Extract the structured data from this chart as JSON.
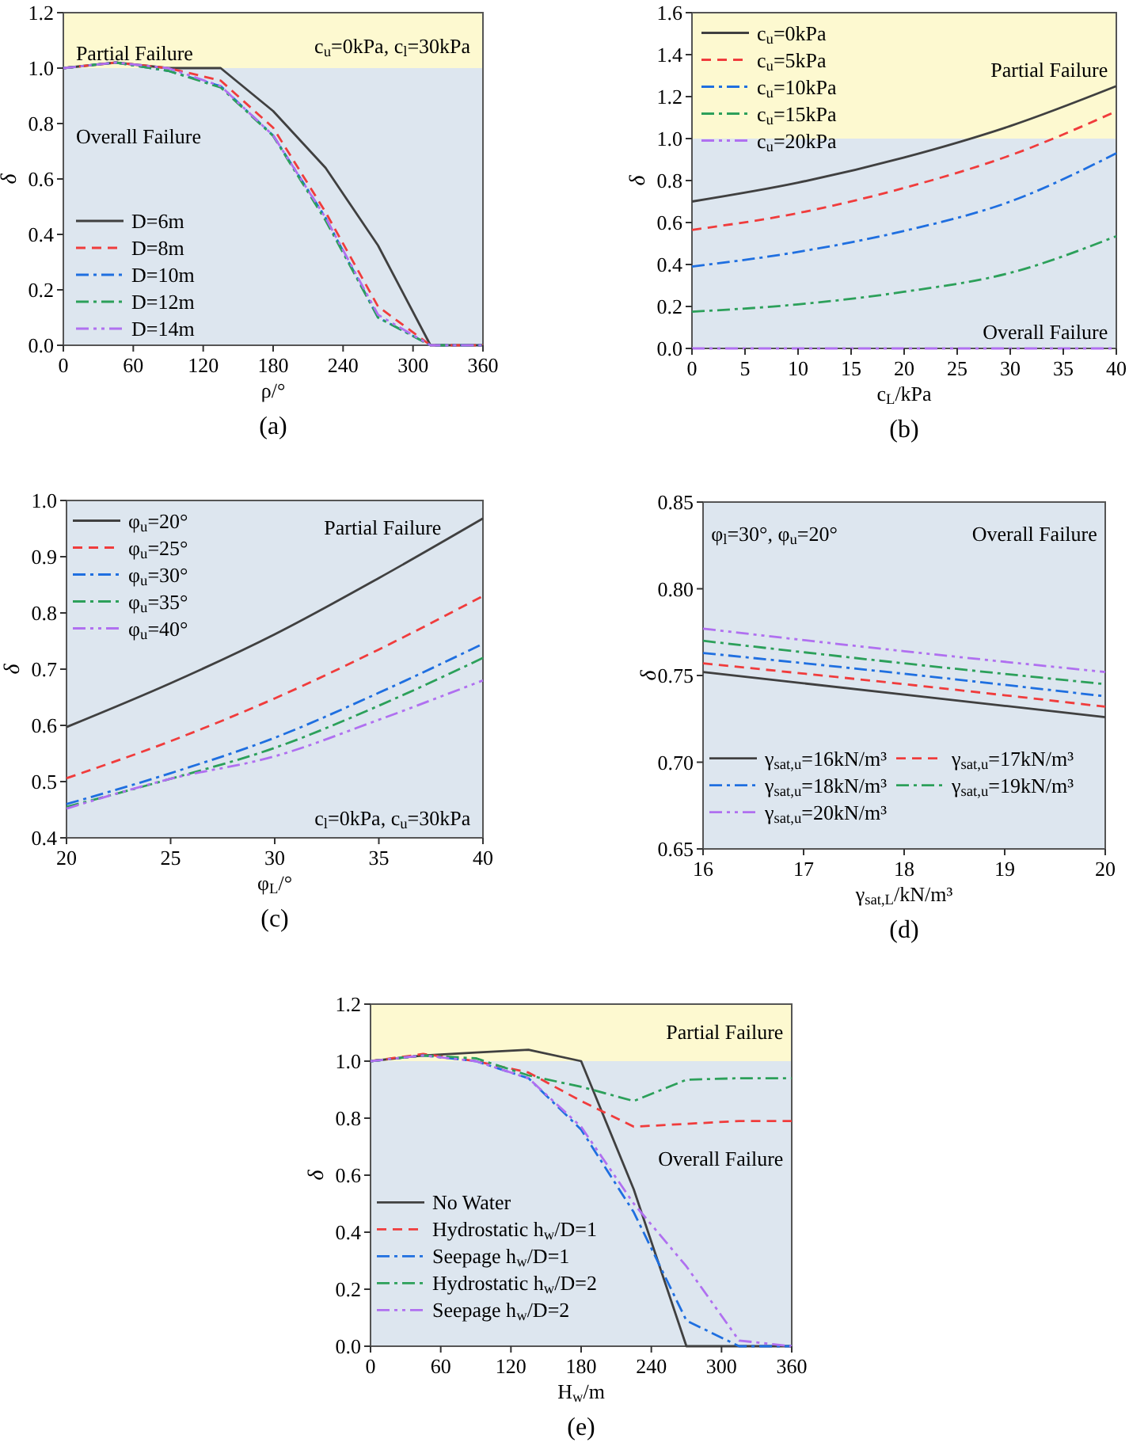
{
  "chart_data": [
    {
      "type": "line",
      "title": "(a)",
      "xlabel": "ρ/°",
      "ylabel": "δ",
      "x": [
        0,
        45,
        90,
        135,
        180,
        225,
        270,
        315,
        360
      ],
      "xlim": [
        0,
        360
      ],
      "xticks": [
        0,
        60,
        120,
        180,
        240,
        300,
        360
      ],
      "ylim": [
        0,
        1.2
      ],
      "yticks": [
        {
          "value": 0,
          "label": "0.0"
        },
        0.2,
        0.4,
        0.6,
        0.8,
        {
          "value": 1,
          "label": "1.0"
        },
        1.2
      ],
      "legend": "bottom left",
      "grid": false,
      "bands": [
        {
          "axis": "y",
          "from": 1,
          "to": 1.2,
          "label": "Partial Failure",
          "color": "#fdf9d0"
        },
        {
          "axis": "y",
          "from": 0,
          "to": 1,
          "label": "Overall Failure",
          "color": "#dde6ef"
        }
      ],
      "annotations": [
        "c$_{u}$=0kPa, c$_{l}$=30kPa"
      ],
      "series": [
        {
          "name": "D=6m",
          "color": "#404040",
          "line_style": "solid",
          "values": [
            1,
            1.02,
            1,
            1,
            0.845,
            0.64,
            0.36,
            0,
            0
          ]
        },
        {
          "name": "D=8m",
          "color": "#f03c3c",
          "line_style": "dashed",
          "values": [
            1,
            1.02,
            1,
            0.955,
            0.785,
            0.48,
            0.14,
            0,
            0
          ]
        },
        {
          "name": "D=10m",
          "color": "#1f6fe0",
          "line_style": "dashdot",
          "values": [
            1,
            1.02,
            0.99,
            0.935,
            0.757,
            0.46,
            0.1,
            0,
            0
          ]
        },
        {
          "name": "D=12m",
          "color": "#2ca05a",
          "line_style": "dashdot",
          "values": [
            1,
            1.02,
            0.99,
            0.93,
            0.755,
            0.45,
            0.1,
            0,
            0
          ]
        },
        {
          "name": "D=14m",
          "color": "#b070f0",
          "line_style": "dashdotdot",
          "values": [
            1,
            1.02,
            1,
            0.935,
            0.757,
            0.46,
            0.11,
            0,
            0
          ]
        }
      ]
    },
    {
      "type": "line",
      "title": "(b)",
      "xlabel": "c$_{L}$/kPa",
      "ylabel": "δ",
      "x": [
        0,
        10,
        20,
        30,
        40
      ],
      "xlim": [
        0,
        40
      ],
      "xticks": [
        0,
        5,
        10,
        15,
        20,
        25,
        30,
        35,
        40
      ],
      "ylim": [
        0,
        1.6
      ],
      "yticks": [
        {
          "value": 0,
          "label": "0.0"
        },
        0.2,
        0.4,
        0.6,
        0.8,
        {
          "value": 1,
          "label": "1.0"
        },
        1.2,
        1.4,
        1.6
      ],
      "legend": "top left",
      "grid": false,
      "bands": [
        {
          "axis": "y",
          "from": 1,
          "to": 1.6,
          "label": "Partial Failure",
          "color": "#fdf9d0"
        },
        {
          "axis": "y",
          "from": 0,
          "to": 1,
          "label": "Overall Failure",
          "color": "#dde6ef"
        }
      ],
      "series": [
        {
          "name": "c$_{u}$=0kPa",
          "color": "#404040",
          "line_style": "solid",
          "values": [
            0.7,
            0.79,
            0.91,
            1.06,
            1.25
          ]
        },
        {
          "name": "c$_{u}$=5kPa",
          "color": "#f03c3c",
          "line_style": "dashed",
          "values": [
            0.565,
            0.645,
            0.765,
            0.92,
            1.13
          ]
        },
        {
          "name": "c$_{u}$=10kPa",
          "color": "#1f6fe0",
          "line_style": "dashdot",
          "values": [
            0.39,
            0.46,
            0.56,
            0.7,
            0.93
          ]
        },
        {
          "name": "c$_{u}$=15kPa",
          "color": "#2ca05a",
          "line_style": "dashdot",
          "values": [
            0.175,
            0.21,
            0.27,
            0.36,
            0.535
          ]
        },
        {
          "name": "c$_{u}$=20kPa",
          "color": "#b070f0",
          "line_style": "dashdotdot",
          "values": [
            0,
            0,
            0,
            0,
            0
          ]
        }
      ]
    },
    {
      "type": "line",
      "title": "(c)",
      "xlabel": "φ$_{L}$/°",
      "ylabel": "δ",
      "x": [
        20,
        25,
        30,
        35,
        40
      ],
      "xlim": [
        20,
        40
      ],
      "xticks": [
        20,
        25,
        30,
        35,
        40
      ],
      "ylim": [
        0.4,
        1
      ],
      "yticks": [
        0.4,
        0.5,
        0.6,
        0.7,
        0.8,
        0.9,
        {
          "value": 1,
          "label": "1.0"
        }
      ],
      "legend": "top left",
      "grid": false,
      "bands": [
        {
          "axis": "y",
          "from": 0.4,
          "to": 1,
          "color": "#dde6ef"
        }
      ],
      "annotations": [
        "c$_{l}$=0kPa, c$_{u}$=30kPa",
        "Partial Failure"
      ],
      "series": [
        {
          "name": "φ$_{u}$=20°",
          "color": "#404040",
          "line_style": "solid",
          "values": [
            0.597,
            0.675,
            0.762,
            0.862,
            0.968
          ]
        },
        {
          "name": "φ$_{u}$=25°",
          "color": "#f03c3c",
          "line_style": "dashed",
          "values": [
            0.506,
            0.572,
            0.648,
            0.735,
            0.83
          ]
        },
        {
          "name": "φ$_{u}$=30°",
          "color": "#1f6fe0",
          "line_style": "dashdot",
          "values": [
            0.46,
            0.515,
            0.578,
            0.658,
            0.745
          ]
        },
        {
          "name": "φ$_{u}$=35°",
          "color": "#2ca05a",
          "line_style": "dashdot",
          "values": [
            0.455,
            0.505,
            0.56,
            0.635,
            0.72
          ]
        },
        {
          "name": "φ$_{u}$=40°",
          "color": "#b070f0",
          "line_style": "dashdotdot",
          "values": [
            0.452,
            0.505,
            0.545,
            0.61,
            0.68
          ]
        }
      ]
    },
    {
      "type": "line",
      "title": "(d)",
      "xlabel": "γ$_{sat,L}$/kN/m³",
      "ylabel": "δ",
      "x": [
        16,
        18,
        20
      ],
      "xlim": [
        16,
        20
      ],
      "xticks": [
        16,
        17,
        18,
        19,
        20
      ],
      "ylim": [
        0.65,
        0.85
      ],
      "yticks": [
        0.65,
        {
          "value": 0.7,
          "label": "0.70"
        },
        0.75,
        {
          "value": 0.8,
          "label": "0.80"
        },
        0.85
      ],
      "legend": "bottom left",
      "grid": false,
      "bands": [
        {
          "axis": "y",
          "from": 0.65,
          "to": 0.85,
          "label": "Overall Failure",
          "color": "#dde6ef"
        }
      ],
      "annotations": [
        "φ$_{l}$=30°, φ$_{u}$=20°"
      ],
      "series": [
        {
          "name": "γ$_{sat,u}$=16kN/m³",
          "color": "#404040",
          "line_style": "solid",
          "values": [
            0.752,
            0.739,
            0.726
          ]
        },
        {
          "name": "γ$_{sat,u}$=17kN/m³",
          "color": "#f03c3c",
          "line_style": "dashed",
          "values": [
            0.757,
            0.745,
            0.732
          ]
        },
        {
          "name": "γ$_{sat,u}$=18kN/m³",
          "color": "#1f6fe0",
          "line_style": "dashdot",
          "values": [
            0.763,
            0.751,
            0.738
          ]
        },
        {
          "name": "γ$_{sat,u}$=19kN/m³",
          "color": "#2ca05a",
          "line_style": "dashdot",
          "values": [
            0.77,
            0.757,
            0.745
          ]
        },
        {
          "name": "γ$_{sat,u}$=20kN/m³",
          "color": "#b070f0",
          "line_style": "dashdotdot",
          "values": [
            0.777,
            0.764,
            0.752
          ]
        }
      ]
    },
    {
      "type": "line",
      "title": "(e)",
      "xlabel": "H$_{w}$/m",
      "ylabel": "δ",
      "x": [
        0,
        45,
        90,
        135,
        180,
        225,
        270,
        315,
        360
      ],
      "xlim": [
        0,
        360
      ],
      "xticks": [
        0,
        60,
        120,
        180,
        240,
        300,
        360
      ],
      "ylim": [
        0,
        1.2
      ],
      "yticks": [
        {
          "value": 0,
          "label": "0.0"
        },
        0.2,
        0.4,
        0.6,
        0.8,
        {
          "value": 1,
          "label": "1.0"
        },
        1.2
      ],
      "legend": "bottom left",
      "grid": false,
      "bands": [
        {
          "axis": "y",
          "from": 1,
          "to": 1.2,
          "label": "Partial Failure",
          "color": "#fdf9d0"
        },
        {
          "axis": "y",
          "from": 0,
          "to": 1,
          "label": "Overall Failure",
          "color": "#dde6ef"
        }
      ],
      "series": [
        {
          "name": "No Water",
          "color": "#404040",
          "line_style": "solid",
          "values": [
            1,
            1.02,
            1.03,
            1.04,
            1,
            0.55,
            0,
            0,
            0
          ]
        },
        {
          "name": "Hydrostatic h$_{w}$/D=1",
          "color": "#f03c3c",
          "line_style": "dashed",
          "values": [
            1,
            1.025,
            1,
            0.96,
            0.86,
            0.77,
            0.78,
            0.79,
            0.79
          ]
        },
        {
          "name": "Seepage h$_{w}$/D=1",
          "color": "#1f6fe0",
          "line_style": "dashdot",
          "values": [
            1,
            1.02,
            1,
            0.94,
            0.76,
            0.47,
            0.09,
            0,
            0
          ]
        },
        {
          "name": "Hydrostatic h$_{w}$/D=2",
          "color": "#2ca05a",
          "line_style": "dashdot",
          "values": [
            1,
            1.02,
            1.01,
            0.95,
            0.91,
            0.86,
            0.935,
            0.94,
            0.94
          ]
        },
        {
          "name": "Seepage h$_{w}$/D=2",
          "color": "#b070f0",
          "line_style": "dashdotdot",
          "values": [
            1,
            1.02,
            1,
            0.94,
            0.77,
            0.5,
            0.28,
            0.02,
            0
          ]
        }
      ]
    }
  ]
}
